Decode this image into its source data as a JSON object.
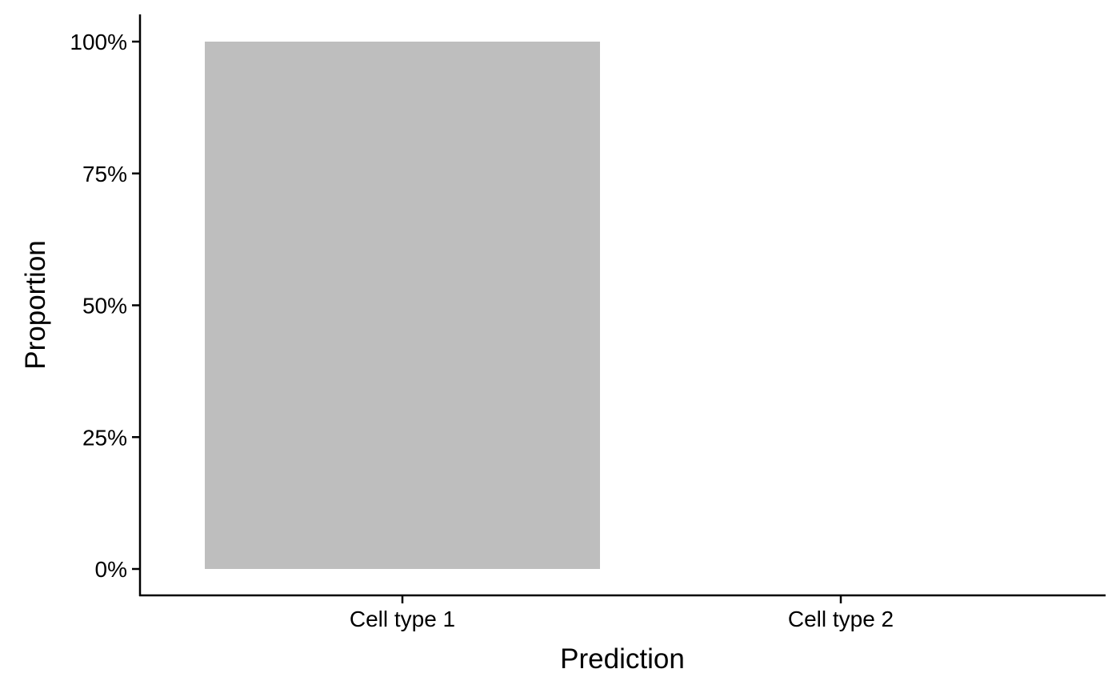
{
  "chart_data": {
    "type": "bar",
    "categories": [
      "Cell type 1",
      "Cell type 2"
    ],
    "values": [
      1.0,
      0.0
    ],
    "value_format": "percent",
    "title": "",
    "xlabel": "Prediction",
    "ylabel": "Proportion",
    "ylim": [
      0,
      1
    ],
    "yticks": [
      0,
      0.25,
      0.5,
      0.75,
      1.0
    ],
    "ytick_labels": [
      "0%",
      "25%",
      "50%",
      "75%",
      "100%"
    ],
    "grid": false,
    "legend": "none",
    "bar_color": "#bebebe"
  }
}
